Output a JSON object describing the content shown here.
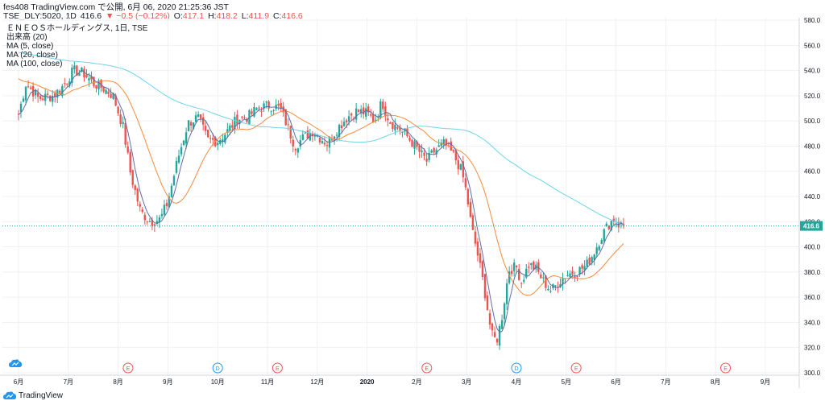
{
  "header": {
    "line1": "fes408 TradingView.com で公開, 6月 06, 2020 21:25:36 JST",
    "symbol": "TSE_DLY:5020, 1D",
    "last": "416.6",
    "change": "▼ −0.5 (−0.12%)",
    "o_label": "O:",
    "o_val": "417.1",
    "h_label": "H:",
    "h_val": "418.2",
    "l_label": "L:",
    "l_val": "411.9",
    "c_label": "C:",
    "c_val": "416.6"
  },
  "legend": {
    "title": "ＥＮＥＯＳホールディングス, 1日, TSE",
    "volume": "出来高 (20)",
    "ma5": "MA (5, close)",
    "ma20": "MA (20, close)",
    "ma100": "MA (100, close)"
  },
  "footer": {
    "brand": "TradingView"
  },
  "colors": {
    "up": "#26a69a",
    "down": "#ef5350",
    "ma5": "#5b6ea8",
    "ma20": "#f7893b",
    "ma100": "#6fd3e8",
    "grid": "#eef0f3",
    "price_tag": "#26a69a"
  },
  "chart_data": {
    "type": "candlestick",
    "ylim": [
      298,
      582
    ],
    "y_ticks": [
      "580.0",
      "560.0",
      "540.0",
      "520.0",
      "500.0",
      "480.0",
      "460.0",
      "440.0",
      "420.0",
      "400.0",
      "380.0",
      "360.0",
      "340.0",
      "320.0",
      "300.0"
    ],
    "x_ticks": [
      "6月",
      "7月",
      "8月",
      "9月",
      "10月",
      "11月",
      "12月",
      "2020",
      "2月",
      "3月",
      "4月",
      "5月",
      "6月",
      "7月",
      "8月",
      "9月"
    ],
    "last_price_label": "416.6",
    "events": [
      {
        "label": "E",
        "month_index": 2.2
      },
      {
        "label": "D",
        "month_index": 4.0
      },
      {
        "label": "E",
        "month_index": 5.2
      },
      {
        "label": "E",
        "month_index": 8.2
      },
      {
        "label": "D",
        "month_index": 10.0
      },
      {
        "label": "E",
        "month_index": 11.2
      },
      {
        "label": "E",
        "month_index": 14.2
      }
    ],
    "close_anchors": [
      [
        0,
        505
      ],
      [
        0.15,
        530
      ],
      [
        0.4,
        518
      ],
      [
        0.7,
        520
      ],
      [
        0.9,
        528
      ],
      [
        1.1,
        540
      ],
      [
        1.3,
        538
      ],
      [
        1.5,
        530
      ],
      [
        1.7,
        526
      ],
      [
        1.9,
        520
      ],
      [
        2.1,
        495
      ],
      [
        2.25,
        458
      ],
      [
        2.45,
        428
      ],
      [
        2.65,
        420
      ],
      [
        2.85,
        422
      ],
      [
        3.0,
        436
      ],
      [
        3.2,
        470
      ],
      [
        3.4,
        498
      ],
      [
        3.6,
        503
      ],
      [
        3.8,
        485
      ],
      [
        4.0,
        484
      ],
      [
        4.2,
        492
      ],
      [
        4.4,
        502
      ],
      [
        4.6,
        503
      ],
      [
        4.8,
        510
      ],
      [
        5.0,
        512
      ],
      [
        5.1,
        512
      ],
      [
        5.25,
        510
      ],
      [
        5.4,
        496
      ],
      [
        5.55,
        480
      ],
      [
        5.7,
        486
      ],
      [
        5.9,
        492
      ],
      [
        6.05,
        487
      ],
      [
        6.2,
        482
      ],
      [
        6.4,
        494
      ],
      [
        6.6,
        503
      ],
      [
        6.8,
        508
      ],
      [
        7.0,
        506
      ],
      [
        7.15,
        500
      ],
      [
        7.3,
        515
      ],
      [
        7.45,
        500
      ],
      [
        7.6,
        495
      ],
      [
        7.8,
        488
      ],
      [
        8.0,
        478
      ],
      [
        8.2,
        468
      ],
      [
        8.35,
        476
      ],
      [
        8.55,
        482
      ],
      [
        8.75,
        472
      ],
      [
        8.9,
        460
      ],
      [
        9.0,
        442
      ],
      [
        9.1,
        415
      ],
      [
        9.2,
        398
      ],
      [
        9.35,
        368
      ],
      [
        9.5,
        330
      ],
      [
        9.6,
        325
      ],
      [
        9.7,
        342
      ],
      [
        9.85,
        382
      ],
      [
        10.0,
        384
      ],
      [
        10.1,
        372
      ],
      [
        10.25,
        386
      ],
      [
        10.4,
        382
      ],
      [
        10.55,
        372
      ],
      [
        10.7,
        365
      ],
      [
        10.85,
        372
      ],
      [
        11.0,
        378
      ],
      [
        11.2,
        380
      ],
      [
        11.4,
        385
      ],
      [
        11.55,
        395
      ],
      [
        11.7,
        408
      ],
      [
        11.85,
        418
      ],
      [
        11.95,
        422
      ],
      [
        12.05,
        418
      ],
      [
        12.15,
        416.6
      ]
    ],
    "last_index": 12.15
  }
}
